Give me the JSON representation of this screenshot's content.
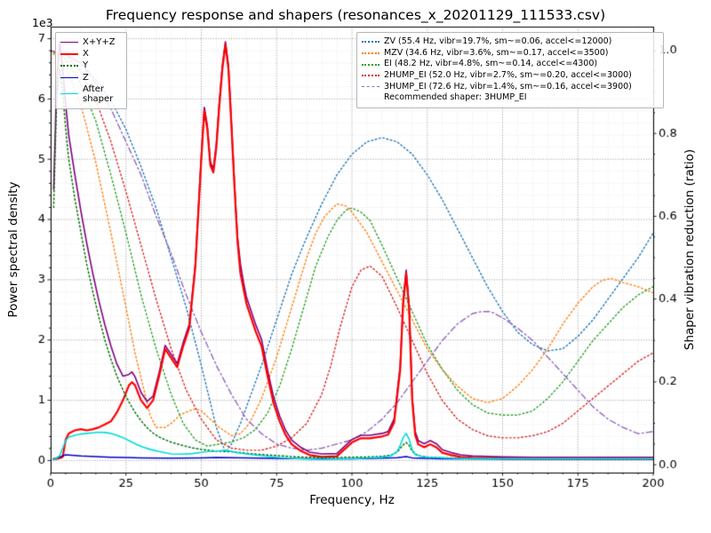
{
  "chart": {
    "title": "Frequency response and shapers (resonances_x_20201129_111533.csv)",
    "offset_text": "1e3",
    "xlabel": "Frequency, Hz",
    "ylabel_left": "Power spectral density",
    "ylabel_right": "Shaper vibration reduction (ratio)",
    "recommended": "Recommended shaper: 3HUMP_EI"
  },
  "chart_data": {
    "type": "line",
    "title": "Frequency response and shapers (resonances_x_20201129_111533.csv)",
    "xlabel": "Frequency, Hz",
    "ylabel_left": "Power spectral density",
    "ylabel_right": "Shaper vibration reduction (ratio)",
    "grid": "major+minor",
    "xlim": [
      0,
      200
    ],
    "ylim_left": [
      -200,
      7200
    ],
    "ylim_right": [
      -0.019,
      1.058
    ],
    "xticks": {
      "values": [
        0,
        25,
        50,
        75,
        100,
        125,
        150,
        175,
        200
      ],
      "labels": [
        "0",
        "25",
        "50",
        "75",
        "100",
        "125",
        "150",
        "175",
        "200"
      ]
    },
    "yticks_left": {
      "values": [
        0,
        1000,
        2000,
        3000,
        4000,
        5000,
        6000,
        7000
      ],
      "labels": [
        "0",
        "1",
        "2",
        "3",
        "4",
        "5",
        "6",
        "7"
      ],
      "offset": "1e3"
    },
    "yticks_right": {
      "values": [
        0,
        0.2,
        0.4,
        0.6,
        0.8,
        1.0
      ],
      "labels": [
        "0.0",
        "0.2",
        "0.4",
        "0.6",
        "0.8",
        "1.0"
      ]
    },
    "colors": {
      "grid_major": "#9b9b9b",
      "grid_minor": "#dcdcdc",
      "spine": "#000000"
    },
    "psd_series": [
      {
        "label": "X+Y+Z",
        "color": "#800080",
        "style": "solid",
        "lw": 1.6,
        "axis": "left",
        "x": [
          1,
          2,
          3,
          4,
          5,
          6,
          8,
          10,
          12,
          14,
          16,
          18,
          20,
          22,
          24,
          26,
          27,
          28,
          30,
          32,
          34,
          36,
          38,
          40,
          42,
          44,
          46,
          48,
          50,
          51,
          52,
          53,
          54,
          55,
          56,
          57,
          58,
          59,
          60,
          61,
          62,
          63,
          64,
          65,
          66,
          68,
          70,
          72,
          74,
          76,
          78,
          80,
          83,
          86,
          90,
          95,
          100,
          103,
          106,
          110,
          112,
          114,
          116,
          117,
          118,
          119,
          120,
          121,
          122,
          124,
          126,
          128,
          130,
          133,
          136,
          140,
          150,
          160,
          175,
          200
        ],
        "y": [
          4500,
          6300,
          6950,
          6500,
          5900,
          5400,
          4750,
          4150,
          3600,
          3100,
          2650,
          2250,
          1900,
          1600,
          1400,
          1430,
          1470,
          1390,
          1130,
          980,
          1070,
          1460,
          1910,
          1760,
          1610,
          1960,
          2260,
          3260,
          5060,
          5860,
          5560,
          4960,
          4840,
          5260,
          5960,
          6560,
          6950,
          6560,
          5620,
          4620,
          3720,
          3260,
          2960,
          2710,
          2560,
          2260,
          2010,
          1500,
          1050,
          740,
          500,
          340,
          220,
          140,
          110,
          115,
          350,
          420,
          420,
          450,
          480,
          690,
          1560,
          2660,
          3160,
          2560,
          1060,
          480,
          330,
          280,
          330,
          280,
          180,
          130,
          95,
          75,
          60,
          55,
          55,
          55
        ]
      },
      {
        "label": "X",
        "color": "#ff0000",
        "style": "solid",
        "lw": 2.2,
        "axis": "left",
        "x": [
          1,
          2,
          3,
          4,
          5,
          6,
          8,
          10,
          12,
          14,
          16,
          18,
          20,
          22,
          24,
          26,
          27,
          28,
          30,
          32,
          34,
          36,
          38,
          40,
          42,
          44,
          46,
          48,
          50,
          51,
          52,
          53,
          54,
          55,
          56,
          57,
          58,
          59,
          60,
          61,
          62,
          63,
          64,
          65,
          66,
          68,
          70,
          72,
          74,
          76,
          78,
          80,
          83,
          86,
          90,
          95,
          100,
          103,
          106,
          110,
          112,
          114,
          116,
          117,
          118,
          119,
          120,
          121,
          122,
          124,
          126,
          128,
          130,
          133,
          136,
          140,
          150,
          160,
          175,
          200
        ],
        "y": [
          20,
          30,
          40,
          60,
          350,
          450,
          500,
          520,
          500,
          520,
          550,
          600,
          650,
          800,
          1000,
          1250,
          1300,
          1250,
          1000,
          870,
          1000,
          1400,
          1850,
          1700,
          1550,
          1900,
          2200,
          3200,
          5000,
          5800,
          5500,
          4900,
          4780,
          5200,
          5900,
          6500,
          6900,
          6500,
          5550,
          4550,
          3650,
          3100,
          2850,
          2600,
          2450,
          2150,
          1900,
          1400,
          950,
          650,
          420,
          270,
          160,
          90,
          60,
          70,
          300,
          370,
          370,
          400,
          430,
          630,
          1500,
          2600,
          3100,
          2500,
          1000,
          420,
          270,
          220,
          270,
          220,
          130,
          90,
          60,
          45,
          35,
          30,
          30,
          30
        ]
      },
      {
        "label": "Y",
        "color": "#007000",
        "style": "dotted",
        "lw": 1.5,
        "axis": "left",
        "x": [
          1,
          2,
          3,
          4,
          5,
          6,
          8,
          10,
          12,
          14,
          16,
          18,
          20,
          22,
          24,
          26,
          28,
          30,
          32,
          34,
          36,
          38,
          40,
          42,
          44,
          46,
          48,
          50,
          52,
          54,
          56,
          58,
          60,
          62,
          64,
          66,
          68,
          70,
          73,
          76,
          80,
          85,
          90,
          95,
          100,
          105,
          110,
          113,
          115,
          117,
          118,
          119,
          120,
          122,
          125,
          130,
          135,
          140,
          150,
          160,
          175,
          200
        ],
        "y": [
          4200,
          6000,
          6500,
          6100,
          5500,
          5000,
          4350,
          3800,
          3250,
          2800,
          2380,
          2000,
          1680,
          1400,
          1170,
          970,
          800,
          660,
          545,
          455,
          390,
          345,
          305,
          275,
          248,
          222,
          200,
          185,
          172,
          162,
          155,
          150,
          145,
          137,
          127,
          117,
          108,
          100,
          90,
          80,
          65,
          55,
          50,
          50,
          55,
          60,
          70,
          90,
          140,
          260,
          300,
          250,
          150,
          80,
          58,
          45,
          40,
          35,
          30,
          30,
          30,
          30
        ]
      },
      {
        "label": "Z",
        "color": "#0000cc",
        "style": "solid",
        "lw": 1.5,
        "axis": "left",
        "x": [
          1,
          3,
          5,
          8,
          10,
          15,
          20,
          25,
          30,
          40,
          50,
          55,
          60,
          70,
          80,
          90,
          100,
          110,
          115,
          118,
          120,
          130,
          150,
          175,
          200
        ],
        "y": [
          30,
          60,
          95,
          85,
          75,
          65,
          55,
          50,
          45,
          40,
          45,
          50,
          48,
          40,
          32,
          28,
          30,
          38,
          48,
          65,
          45,
          30,
          25,
          25,
          25
        ]
      },
      {
        "label": "After shaper",
        "color": "#00dcdc",
        "style": "solid",
        "lw": 1.6,
        "axis": "left",
        "x": [
          1,
          3,
          5,
          6,
          8,
          10,
          12,
          14,
          16,
          18,
          20,
          22,
          24,
          26,
          28,
          30,
          33,
          36,
          40,
          44,
          47,
          50,
          52,
          54,
          56,
          58,
          60,
          62,
          65,
          68,
          72,
          76,
          80,
          85,
          90,
          95,
          100,
          104,
          108,
          111,
          113,
          115,
          116,
          117,
          118,
          119,
          120,
          121,
          123,
          125,
          128,
          130,
          135,
          140,
          150,
          160,
          175,
          200
        ],
        "y": [
          10,
          80,
          330,
          390,
          420,
          440,
          450,
          460,
          470,
          465,
          450,
          420,
          380,
          330,
          280,
          235,
          185,
          150,
          110,
          105,
          115,
          135,
          150,
          150,
          160,
          170,
          155,
          130,
          110,
          90,
          70,
          50,
          35,
          25,
          20,
          25,
          30,
          40,
          50,
          60,
          80,
          150,
          250,
          380,
          450,
          350,
          180,
          100,
          70,
          55,
          50,
          45,
          35,
          30,
          30,
          30,
          30,
          30
        ]
      }
    ],
    "shaper_series": [
      {
        "label": "ZV (55.4 Hz, vibr=19.7%, sm~=0.06, accel<=12000)",
        "color": "#1f77b4",
        "style": "dotted",
        "lw": 1.4,
        "axis": "right",
        "x": [
          0,
          5,
          10,
          15,
          20,
          25,
          30,
          35,
          40,
          45,
          50,
          53,
          55,
          58,
          60,
          63,
          65,
          70,
          75,
          80,
          85,
          90,
          95,
          100,
          105,
          110,
          115,
          120,
          125,
          130,
          135,
          140,
          145,
          150,
          155,
          160,
          165,
          170,
          175,
          180,
          185,
          190,
          195,
          200
        ],
        "y": [
          1.0,
          0.99,
          0.97,
          0.93,
          0.88,
          0.81,
          0.72,
          0.62,
          0.5,
          0.38,
          0.24,
          0.15,
          0.09,
          0.03,
          0.05,
          0.1,
          0.14,
          0.24,
          0.35,
          0.46,
          0.55,
          0.63,
          0.7,
          0.75,
          0.78,
          0.79,
          0.78,
          0.75,
          0.7,
          0.64,
          0.57,
          0.5,
          0.43,
          0.37,
          0.32,
          0.29,
          0.275,
          0.28,
          0.31,
          0.35,
          0.4,
          0.45,
          0.5,
          0.56
        ]
      },
      {
        "label": "MZV (34.6 Hz, vibr=3.6%, sm~=0.17, accel<=3500)",
        "color": "#ff7f0e",
        "style": "dotted",
        "lw": 1.4,
        "axis": "right",
        "x": [
          0,
          5,
          10,
          15,
          20,
          25,
          28,
          30,
          33,
          35,
          38,
          40,
          43,
          46,
          48,
          50,
          53,
          56,
          60,
          63,
          66,
          70,
          75,
          80,
          85,
          88,
          91,
          95,
          98,
          100,
          105,
          110,
          115,
          120,
          125,
          130,
          135,
          140,
          145,
          150,
          155,
          160,
          165,
          170,
          175,
          180,
          183,
          186,
          190,
          195,
          200
        ],
        "y": [
          1.0,
          0.96,
          0.87,
          0.73,
          0.56,
          0.38,
          0.27,
          0.21,
          0.12,
          0.09,
          0.09,
          0.1,
          0.12,
          0.13,
          0.135,
          0.13,
          0.11,
          0.09,
          0.07,
          0.075,
          0.1,
          0.16,
          0.26,
          0.38,
          0.5,
          0.56,
          0.6,
          0.63,
          0.625,
          0.61,
          0.56,
          0.49,
          0.42,
          0.35,
          0.28,
          0.23,
          0.19,
          0.16,
          0.15,
          0.16,
          0.19,
          0.23,
          0.28,
          0.34,
          0.39,
          0.43,
          0.445,
          0.45,
          0.44,
          0.43,
          0.415
        ]
      },
      {
        "label": "EI (48.2 Hz, vibr=4.8%, sm~=0.14, accel<=4300)",
        "color": "#2ca02c",
        "style": "dotted",
        "lw": 1.4,
        "axis": "right",
        "x": [
          0,
          5,
          10,
          15,
          20,
          25,
          30,
          35,
          40,
          44,
          48,
          52,
          56,
          60,
          64,
          68,
          72,
          76,
          80,
          84,
          88,
          92,
          95,
          98,
          100,
          103,
          106,
          110,
          115,
          120,
          125,
          130,
          135,
          140,
          145,
          150,
          155,
          160,
          165,
          170,
          175,
          180,
          185,
          190,
          195,
          200
        ],
        "y": [
          1.0,
          0.98,
          0.92,
          0.83,
          0.7,
          0.56,
          0.41,
          0.28,
          0.17,
          0.1,
          0.06,
          0.045,
          0.05,
          0.055,
          0.065,
          0.085,
          0.125,
          0.19,
          0.28,
          0.38,
          0.48,
          0.55,
          0.59,
          0.615,
          0.62,
          0.61,
          0.59,
          0.53,
          0.45,
          0.37,
          0.29,
          0.23,
          0.18,
          0.145,
          0.125,
          0.12,
          0.12,
          0.13,
          0.16,
          0.2,
          0.25,
          0.3,
          0.34,
          0.38,
          0.41,
          0.43
        ]
      },
      {
        "label": "2HUMP_EI (52.0 Hz, vibr=2.7%, sm~=0.20, accel<=3000)",
        "color": "#d62728",
        "style": "dotted",
        "lw": 1.4,
        "axis": "right",
        "x": [
          0,
          5,
          10,
          15,
          20,
          25,
          30,
          35,
          40,
          45,
          50,
          55,
          60,
          65,
          70,
          75,
          80,
          85,
          90,
          93,
          96,
          100,
          103,
          106,
          110,
          115,
          120,
          125,
          130,
          135,
          140,
          145,
          150,
          155,
          160,
          165,
          170,
          175,
          180,
          185,
          190,
          195,
          200
        ],
        "y": [
          1.0,
          0.99,
          0.95,
          0.88,
          0.78,
          0.66,
          0.53,
          0.4,
          0.28,
          0.18,
          0.11,
          0.06,
          0.04,
          0.035,
          0.035,
          0.045,
          0.065,
          0.1,
          0.17,
          0.24,
          0.33,
          0.43,
          0.47,
          0.48,
          0.455,
          0.38,
          0.3,
          0.22,
          0.155,
          0.11,
          0.085,
          0.07,
          0.065,
          0.065,
          0.07,
          0.08,
          0.1,
          0.13,
          0.16,
          0.19,
          0.22,
          0.25,
          0.27
        ]
      },
      {
        "label": "3HUMP_EI (72.6 Hz, vibr=1.4%, sm~=0.16, accel<=3900)",
        "color": "#9467bd",
        "style": "dashdot",
        "lw": 1.4,
        "axis": "right",
        "x": [
          0,
          5,
          10,
          15,
          20,
          25,
          30,
          35,
          40,
          45,
          50,
          55,
          60,
          65,
          70,
          75,
          80,
          85,
          90,
          95,
          100,
          105,
          110,
          115,
          120,
          125,
          130,
          135,
          140,
          143,
          146,
          150,
          155,
          160,
          165,
          170,
          175,
          180,
          185,
          190,
          195,
          200
        ],
        "y": [
          1.0,
          0.99,
          0.97,
          0.92,
          0.86,
          0.78,
          0.7,
          0.6,
          0.51,
          0.41,
          0.32,
          0.24,
          0.17,
          0.11,
          0.075,
          0.05,
          0.04,
          0.035,
          0.04,
          0.05,
          0.06,
          0.08,
          0.11,
          0.15,
          0.2,
          0.25,
          0.3,
          0.34,
          0.365,
          0.37,
          0.37,
          0.355,
          0.33,
          0.3,
          0.26,
          0.22,
          0.18,
          0.14,
          0.11,
          0.09,
          0.075,
          0.08
        ]
      }
    ],
    "annotation": "Recommended shaper: 3HUMP_EI"
  }
}
